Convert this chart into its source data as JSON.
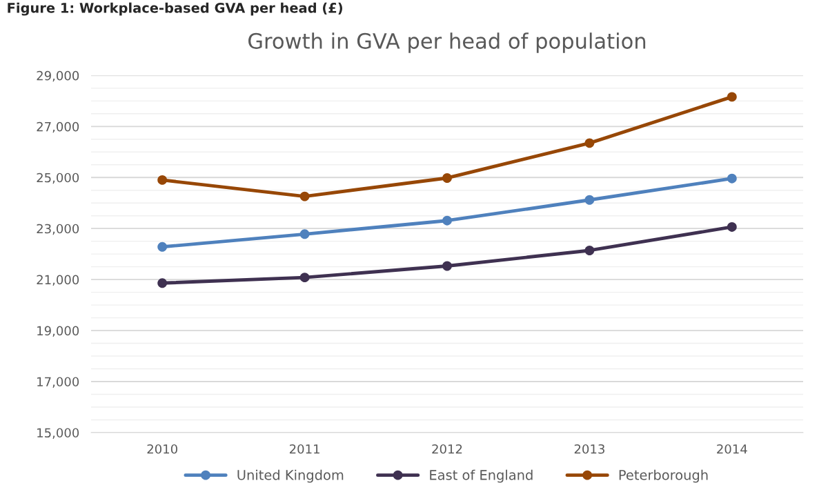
{
  "chart_data": {
    "type": "line",
    "title": "Growth in GVA per head of population",
    "annotations": [
      "Figure 1: Workplace-based GVA per head (£)"
    ],
    "categories": [
      "2010",
      "2011",
      "2012",
      "2013",
      "2014"
    ],
    "series": [
      {
        "name": "United Kingdom",
        "color": "#4f81bd",
        "values": [
          22280,
          22780,
          23310,
          24120,
          24960
        ]
      },
      {
        "name": "East of England",
        "color": "#3f3151",
        "values": [
          20860,
          21080,
          21530,
          22140,
          23060
        ]
      },
      {
        "name": "Peterborough",
        "color": "#974706",
        "values": [
          24900,
          24260,
          24980,
          26350,
          28160
        ]
      }
    ],
    "ylim": [
      15000,
      29000
    ],
    "yticks": [
      {
        "value": 15000,
        "label": "15,000"
      },
      {
        "value": 17000,
        "label": "17,000"
      },
      {
        "value": 19000,
        "label": "19,000"
      },
      {
        "value": 21000,
        "label": "21,000"
      },
      {
        "value": 23000,
        "label": "23,000"
      },
      {
        "value": 25000,
        "label": "25,000"
      },
      {
        "value": 27000,
        "label": "27,000"
      },
      {
        "value": 29000,
        "label": "29,000"
      }
    ],
    "grid": "y",
    "legend": "bottom",
    "marker": "circle",
    "line_style": "solid"
  }
}
